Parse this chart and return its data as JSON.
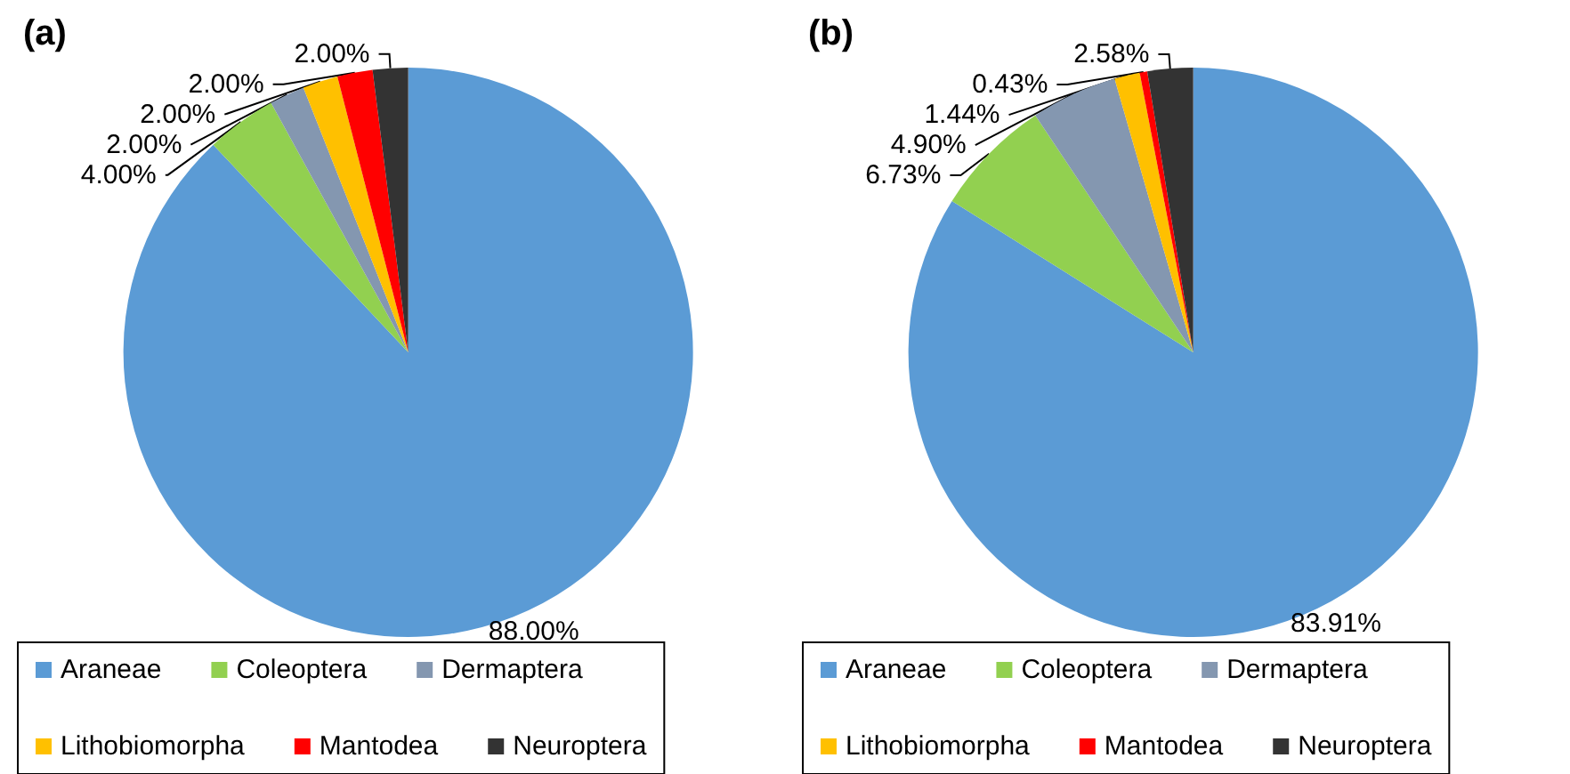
{
  "chart_data": [
    {
      "type": "pie",
      "title": "(a)",
      "categories": [
        "Araneae",
        "Coleoptera",
        "Dermaptera",
        "Lithobiomorpha",
        "Mantodea",
        "Neuroptera"
      ],
      "values": [
        88,
        4,
        2,
        2,
        2,
        2
      ],
      "value_labels": [
        "88.00%",
        "4.00%",
        "2.00%",
        "2.00%",
        "2.00%",
        "2.00%"
      ],
      "colors": [
        "#5b9bd5",
        "#92d050",
        "#8497b0",
        "#ffc000",
        "#ff0000",
        "#333333"
      ],
      "legend": "bottom"
    },
    {
      "type": "pie",
      "title": "(b)",
      "categories": [
        "Araneae",
        "Coleoptera",
        "Dermaptera",
        "Lithobiomorpha",
        "Mantodea",
        "Neuroptera"
      ],
      "values": [
        83.91,
        6.73,
        4.9,
        1.44,
        0.43,
        2.58
      ],
      "value_labels": [
        "83.91%",
        "6.73%",
        "4.90%",
        "1.44%",
        "0.43%",
        "2.58%"
      ],
      "colors": [
        "#5b9bd5",
        "#92d050",
        "#8497b0",
        "#ffc000",
        "#ff0000",
        "#333333"
      ],
      "legend": "bottom"
    }
  ]
}
